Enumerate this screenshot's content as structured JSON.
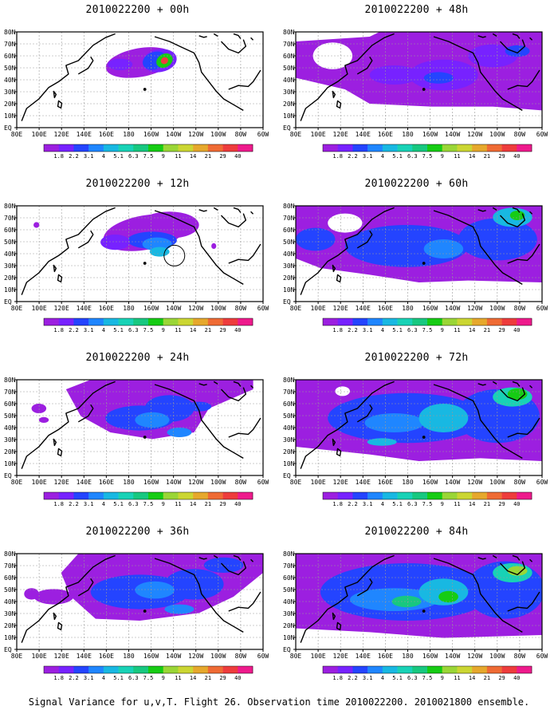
{
  "caption": "Signal Variance for u,v,T. Flight 26. Observation time 2010022200. 2010021800 ensemble.",
  "map": {
    "lat_labels": [
      "EQ",
      "10N",
      "20N",
      "30N",
      "40N",
      "50N",
      "60N",
      "70N",
      "80N"
    ],
    "lon_labels": [
      "80E",
      "100E",
      "120E",
      "140E",
      "160E",
      "180",
      "160W",
      "140W",
      "120W",
      "100W",
      "80W",
      "60W"
    ]
  },
  "colorbar": {
    "levels": [
      "1.8",
      "2.2",
      "3.1",
      "4",
      "5.1",
      "6.3",
      "7.5",
      "9",
      "11",
      "14",
      "21",
      "29",
      "40"
    ],
    "colors": [
      "#9c1fe0",
      "#7722ff",
      "#2444ff",
      "#1f86ff",
      "#18b8e2",
      "#18d2b6",
      "#17c880",
      "#16cc14",
      "#9ad636",
      "#cbd632",
      "#e6a82c",
      "#ef6b34",
      "#ee3c3c",
      "#ee1a8c"
    ]
  },
  "panels": [
    {
      "title": "2010022200 + 00h"
    },
    {
      "title": "2010022200 + 12h"
    },
    {
      "title": "2010022200 + 24h"
    },
    {
      "title": "2010022200 + 36h"
    },
    {
      "title": "2010022200 + 48h"
    },
    {
      "title": "2010022200 + 60h"
    },
    {
      "title": "2010022200 + 72h"
    },
    {
      "title": "2010022200 + 84h"
    }
  ]
}
